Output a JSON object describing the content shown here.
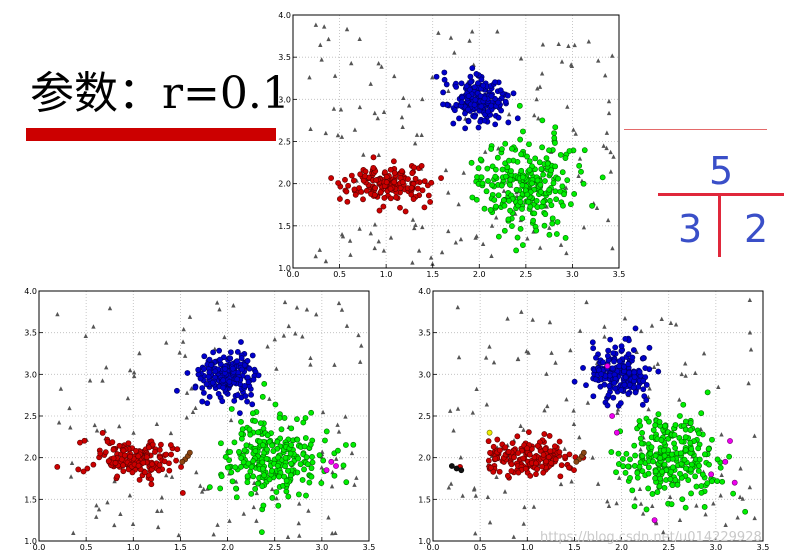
{
  "header": {
    "param_label": "参数：r=0.1"
  },
  "tree": {
    "root": "5",
    "left": "3",
    "right": "2"
  },
  "watermark": "https://blog.csdn.net/u014229928",
  "chart_data": [
    {
      "type": "scatter",
      "xlim": [
        0.0,
        3.5
      ],
      "ylim": [
        1.0,
        4.0
      ],
      "xticks": [
        "0.0",
        "0.5",
        "1.0",
        "1.5",
        "2.0",
        "2.5",
        "3.0",
        "3.5"
      ],
      "yticks": [
        "1.0",
        "1.5",
        "2.0",
        "2.5",
        "3.0",
        "3.5",
        "4.0"
      ],
      "grid": true,
      "clusters": [
        {
          "marker": "circle",
          "color": "#cc0000",
          "center": [
            1.0,
            2.0
          ],
          "spread": [
            0.22,
            0.11
          ],
          "count": 170
        },
        {
          "marker": "circle",
          "color": "#0000cc",
          "center": [
            2.0,
            3.0
          ],
          "spread": [
            0.15,
            0.15
          ],
          "count": 190
        },
        {
          "marker": "circle",
          "color": "#00ee00",
          "center": [
            2.5,
            2.0
          ],
          "spread": [
            0.25,
            0.25
          ],
          "count": 260
        }
      ],
      "extra_points": [],
      "noise_color": "#555555",
      "noise_count": 150
    },
    {
      "type": "scatter",
      "xlim": [
        0.0,
        3.5
      ],
      "ylim": [
        1.0,
        4.0
      ],
      "xticks": [
        "0.0",
        "0.5",
        "1.0",
        "1.5",
        "2.0",
        "2.5",
        "3.0",
        "3.5"
      ],
      "yticks": [
        "1.0",
        "1.5",
        "2.0",
        "2.5",
        "3.0",
        "3.5",
        "4.0"
      ],
      "grid": true,
      "clusters": [
        {
          "marker": "circle",
          "color": "#cc0000",
          "center": [
            1.0,
            2.0
          ],
          "spread": [
            0.22,
            0.11
          ],
          "count": 170
        },
        {
          "marker": "circle",
          "color": "#0000cc",
          "center": [
            2.0,
            3.0
          ],
          "spread": [
            0.15,
            0.15
          ],
          "count": 190
        },
        {
          "marker": "circle",
          "color": "#00ee00",
          "center": [
            2.5,
            2.0
          ],
          "spread": [
            0.25,
            0.25
          ],
          "count": 260
        }
      ],
      "extra_points": [
        {
          "x": 1.55,
          "y": 1.98,
          "color": "#8b4513"
        },
        {
          "x": 1.58,
          "y": 2.02,
          "color": "#8b4513"
        },
        {
          "x": 1.52,
          "y": 1.95,
          "color": "#8b4513"
        },
        {
          "x": 1.6,
          "y": 2.06,
          "color": "#8b4513"
        },
        {
          "x": 3.1,
          "y": 1.95,
          "color": "#ee00ee"
        },
        {
          "x": 3.05,
          "y": 1.85,
          "color": "#ee00ee"
        },
        {
          "x": 3.15,
          "y": 1.9,
          "color": "#ee00ee"
        }
      ],
      "noise_color": "#555555",
      "noise_count": 140
    },
    {
      "type": "scatter",
      "xlim": [
        0.0,
        3.5
      ],
      "ylim": [
        1.0,
        4.0
      ],
      "xticks": [
        "0.0",
        "0.5",
        "1.0",
        "1.5",
        "2.0",
        "2.5",
        "3.0",
        "3.5"
      ],
      "yticks": [
        "1.0",
        "1.5",
        "2.0",
        "2.5",
        "3.0",
        "3.5",
        "4.0"
      ],
      "grid": true,
      "clusters": [
        {
          "marker": "circle",
          "color": "#cc0000",
          "center": [
            1.0,
            2.0
          ],
          "spread": [
            0.22,
            0.11
          ],
          "count": 170
        },
        {
          "marker": "circle",
          "color": "#0000cc",
          "center": [
            2.0,
            3.0
          ],
          "spread": [
            0.15,
            0.15
          ],
          "count": 190
        },
        {
          "marker": "circle",
          "color": "#00ee00",
          "center": [
            2.5,
            2.0
          ],
          "spread": [
            0.25,
            0.25
          ],
          "count": 260
        }
      ],
      "extra_points": [
        {
          "x": 0.2,
          "y": 1.9,
          "color": "#111111"
        },
        {
          "x": 0.25,
          "y": 1.87,
          "color": "#111111"
        },
        {
          "x": 0.3,
          "y": 1.85,
          "color": "#111111"
        },
        {
          "x": 1.55,
          "y": 1.98,
          "color": "#8b4513"
        },
        {
          "x": 1.58,
          "y": 2.02,
          "color": "#8b4513"
        },
        {
          "x": 1.52,
          "y": 1.95,
          "color": "#8b4513"
        },
        {
          "x": 1.6,
          "y": 2.06,
          "color": "#8b4513"
        },
        {
          "x": 0.6,
          "y": 2.3,
          "color": "#eeee00"
        },
        {
          "x": 1.85,
          "y": 3.1,
          "color": "#ee00ee"
        },
        {
          "x": 1.9,
          "y": 2.5,
          "color": "#ee00ee"
        },
        {
          "x": 1.95,
          "y": 2.3,
          "color": "#ee00ee"
        },
        {
          "x": 2.35,
          "y": 1.25,
          "color": "#ee00ee"
        },
        {
          "x": 2.95,
          "y": 1.8,
          "color": "#ee00ee"
        },
        {
          "x": 3.1,
          "y": 1.95,
          "color": "#ee00ee"
        },
        {
          "x": 3.15,
          "y": 2.2,
          "color": "#ee00ee"
        },
        {
          "x": 3.2,
          "y": 1.7,
          "color": "#ee00ee"
        }
      ],
      "noise_color": "#555555",
      "noise_count": 130
    }
  ]
}
